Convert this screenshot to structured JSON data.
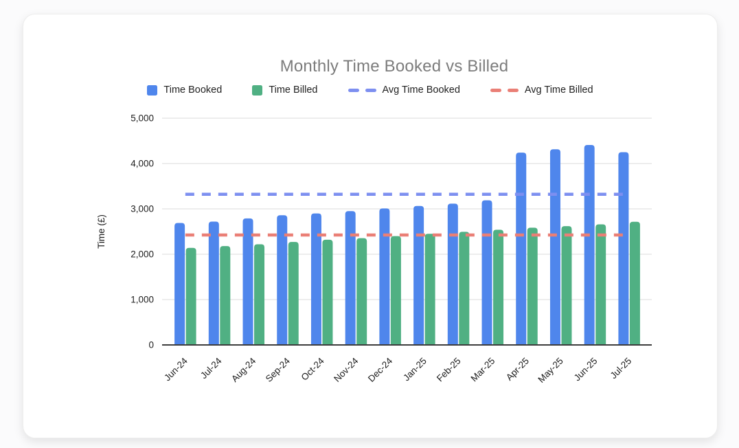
{
  "page": {
    "background_color": "#fbfbfc",
    "card_color": "#ffffff"
  },
  "chart_data": {
    "type": "bar",
    "title": "Monthly Time Booked vs Billed",
    "title_color": "#7c7c7c",
    "ylabel": "Time (£)",
    "xlabel": "",
    "ylim": [
      0,
      5000
    ],
    "ytick_values": [
      0,
      1000,
      2000,
      3000,
      4000,
      5000
    ],
    "ytick_labels": [
      "0",
      "1,000",
      "2,000",
      "3,000",
      "4,000",
      "5,000"
    ],
    "grid": true,
    "legend_position": "top",
    "categories": [
      "Jun-24",
      "Jul-24",
      "Aug-24",
      "Sep-24",
      "Oct-24",
      "Nov-24",
      "Dec-24",
      "Jan-25",
      "Feb-25",
      "Mar-25",
      "Apr-25",
      "May-25",
      "Jun-25",
      "Jul-25"
    ],
    "series": [
      {
        "name": "Time Booked",
        "color": "#4f86ec",
        "values": [
          2690,
          2720,
          2790,
          2860,
          2900,
          2950,
          3010,
          3065,
          3115,
          3190,
          4240,
          4315,
          4410,
          4250
        ]
      },
      {
        "name": "Time Billed",
        "color": "#50b083",
        "values": [
          2140,
          2180,
          2220,
          2270,
          2320,
          2355,
          2400,
          2450,
          2495,
          2540,
          2585,
          2620,
          2660,
          2715
        ]
      }
    ],
    "lines": [
      {
        "name": "Avg Time Booked",
        "color": "#7d8ff0",
        "value": 3322,
        "style": "dashed"
      },
      {
        "name": "Avg Time Billed",
        "color": "#ea7f76",
        "value": 2425,
        "style": "dashed"
      }
    ]
  }
}
